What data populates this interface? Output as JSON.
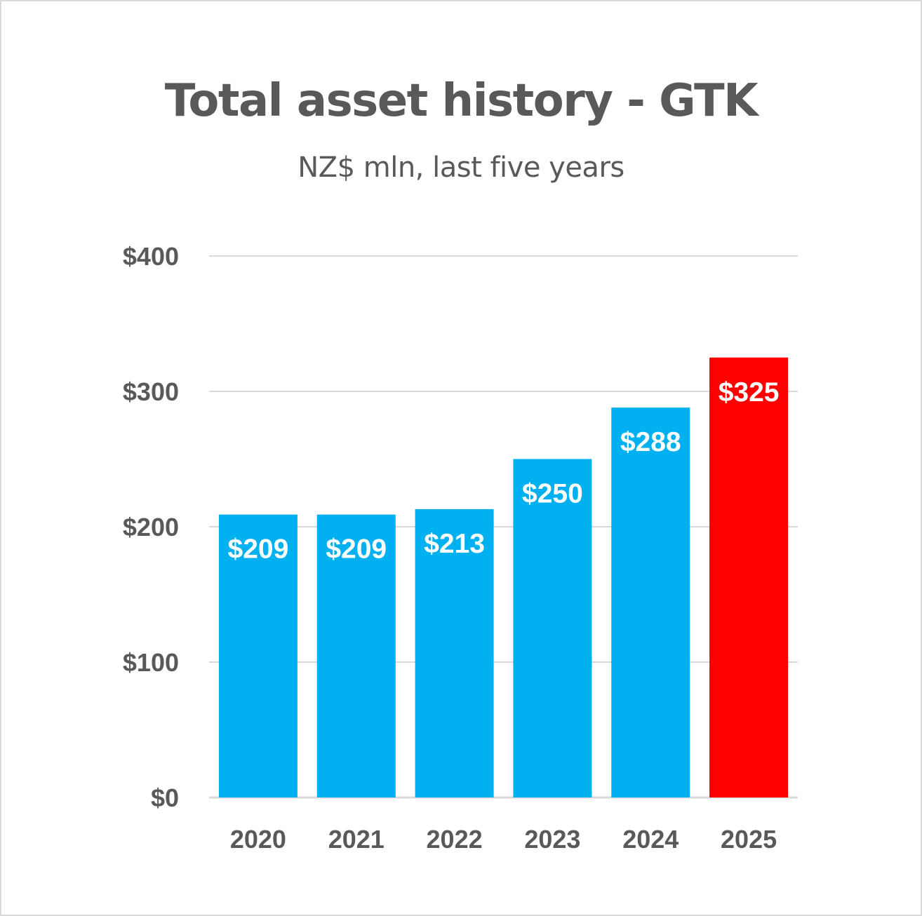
{
  "chart_data": {
    "type": "bar",
    "title": "Total asset history - GTK",
    "subtitle": "NZ$ mln, last five years",
    "categories": [
      "2020",
      "2021",
      "2022",
      "2023",
      "2024",
      "2025"
    ],
    "values": [
      209,
      209,
      213,
      250,
      288,
      325
    ],
    "data_labels": [
      "$209",
      "$209",
      "$213",
      "$250",
      "$288",
      "$325"
    ],
    "ylim": [
      0,
      400
    ],
    "yticks": [
      0,
      100,
      200,
      300,
      400
    ],
    "ytick_labels": [
      "$0",
      "$100",
      "$200",
      "$300",
      "$400"
    ],
    "xlabel": "",
    "ylabel": "",
    "grid": true,
    "legend": "none",
    "colors": {
      "default_bar": "#00b0f0",
      "highlight_bar": "#ff0000",
      "highlight_category": "2025",
      "text": "#595959",
      "gridline": "#d9d9d9",
      "data_label": "#ffffff"
    }
  }
}
